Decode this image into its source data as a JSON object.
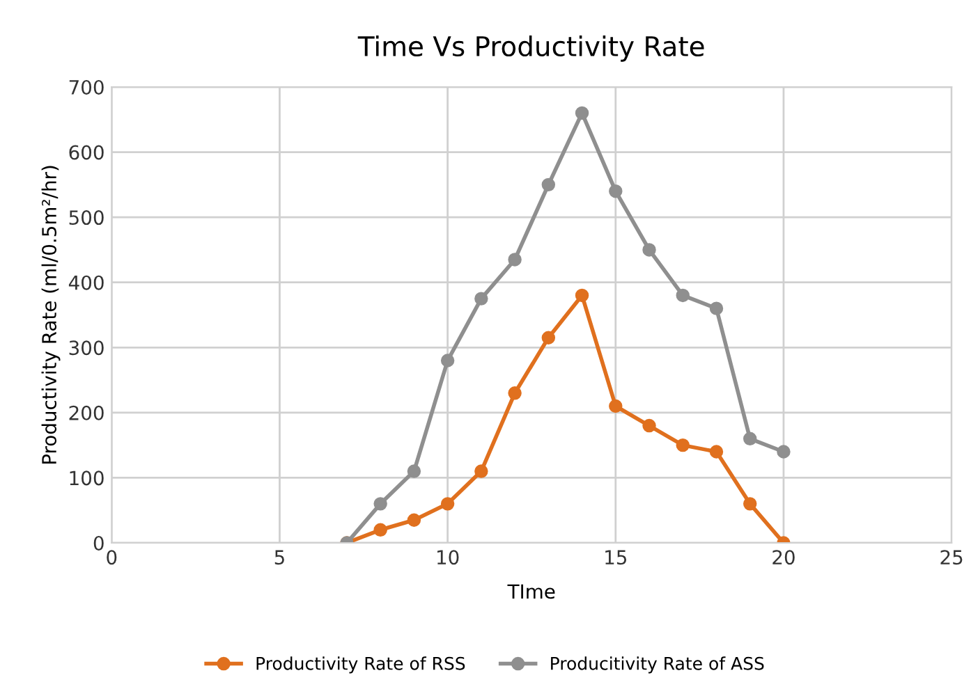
{
  "chart_data": {
    "type": "line",
    "title": "Time Vs Productivity Rate",
    "xlabel": "TIme",
    "ylabel": "Productivity Rate (ml/0.5m²/hr)",
    "x": [
      7,
      8,
      9,
      10,
      11,
      12,
      13,
      14,
      15,
      16,
      17,
      18,
      19,
      20
    ],
    "series": [
      {
        "name": "Productivity Rate of RSS",
        "color": "#e0701e",
        "values": [
          0,
          20,
          35,
          60,
          110,
          230,
          315,
          380,
          210,
          180,
          150,
          140,
          60,
          0
        ]
      },
      {
        "name": "Producitivity Rate of ASS",
        "color": "#8f8f8f",
        "values": [
          0,
          60,
          110,
          280,
          375,
          435,
          550,
          660,
          540,
          450,
          380,
          360,
          160,
          140
        ]
      }
    ],
    "xlim": [
      0,
      25
    ],
    "xticks": [
      0,
      5,
      10,
      15,
      20,
      25
    ],
    "ylim": [
      0,
      700
    ],
    "yticks": [
      0,
      100,
      200,
      300,
      400,
      500,
      600,
      700
    ],
    "grid": true,
    "legend": "bottom",
    "marker": "circle",
    "line_style": "solid"
  }
}
